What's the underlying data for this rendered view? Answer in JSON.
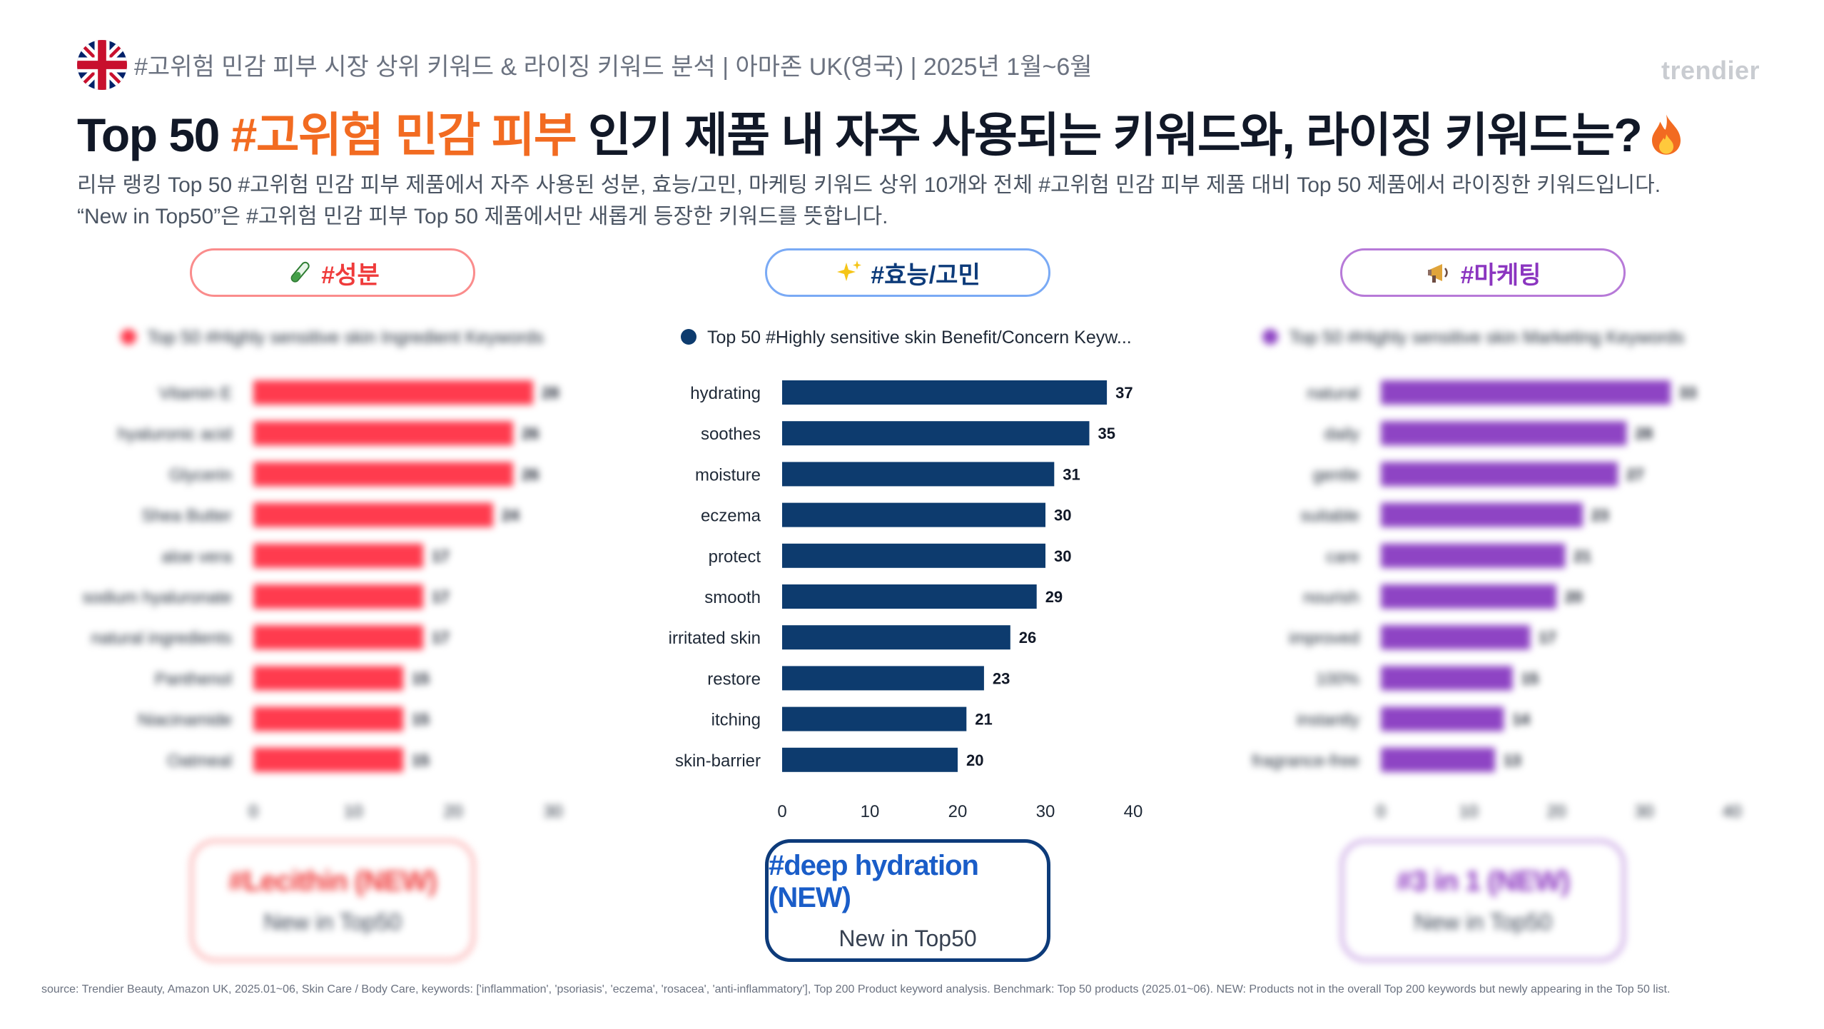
{
  "header": {
    "line": "#고위험 민감 피부 시장 상위 키워드 & 라이징 키워드 분석 | 아마존 UK(영국) | 2025년 1월~6월",
    "brand": "trendier"
  },
  "title": {
    "prefix": "Top 50 ",
    "highlight": "#고위험 민감 피부",
    "suffix": " 인기 제품 내 자주 사용되는 키워드와, 라이징 키워드는?"
  },
  "description": {
    "line1": "리뷰 랭킹 Top 50 #고위험 민감 피부 제품에서 자주 사용된 성분, 효능/고민, 마케팅 키워드 상위 10개와 전체 #고위험 민감 피부 제품 대비 Top 50 제품에서 라이징한 키워드입니다.",
    "line2": "“New in Top50”은 #고위험 민감 피부 Top 50 제품에서만 새롭게 등장한 키워드를 뜻합니다."
  },
  "pills": {
    "ingredient": "#성분",
    "benefit": "#효능/고민",
    "marketing": "#마케팅"
  },
  "colors": {
    "ingredient": "#ff3b4e",
    "benefit": "#0d3b6e",
    "marketing": "#8e44c4",
    "highlight": "#f26b21"
  },
  "chart_data": [
    {
      "type": "bar",
      "orientation": "horizontal",
      "legend": "Top 50 #Highly sensitive skin Ingredient Keywords",
      "categories": [
        "Vitamin E",
        "hyaluronic acid",
        "Glycerin",
        "Shea Butter",
        "aloe vera",
        "sodium hyaluronate",
        "natural ingredients",
        "Panthenol",
        "Niacinamide",
        "Oatmeal"
      ],
      "values": [
        28,
        26,
        26,
        24,
        17,
        17,
        17,
        15,
        15,
        15
      ],
      "xlim": [
        0,
        30
      ],
      "xticks": [
        "0",
        "10",
        "20",
        "30"
      ],
      "blurred": true
    },
    {
      "type": "bar",
      "orientation": "horizontal",
      "legend": "Top 50 #Highly sensitive skin Benefit/Concern Keyw...",
      "categories": [
        "hydrating",
        "soothes",
        "moisture",
        "eczema",
        "protect",
        "smooth",
        "irritated skin",
        "restore",
        "itching",
        "skin-barrier"
      ],
      "values": [
        37,
        35,
        31,
        30,
        30,
        29,
        26,
        23,
        21,
        20
      ],
      "xlim": [
        0,
        40
      ],
      "xticks": [
        "0",
        "10",
        "20",
        "30",
        "40"
      ],
      "blurred": false
    },
    {
      "type": "bar",
      "orientation": "horizontal",
      "legend": "Top 50 #Highly sensitive skin Marketing Keywords",
      "categories": [
        "natural",
        "daily",
        "gentle",
        "suitable",
        "care",
        "nourish",
        "improved",
        "100%",
        "instantly",
        "fragrance-free"
      ],
      "values": [
        33,
        28,
        27,
        23,
        21,
        20,
        17,
        15,
        14,
        13
      ],
      "xlim": [
        0,
        40
      ],
      "xticks": [
        "0",
        "10",
        "20",
        "30",
        "40"
      ],
      "blurred": true
    }
  ],
  "new_keywords": {
    "ingredient": {
      "keyword": "#Lecithin (NEW)",
      "sub": "New in Top50"
    },
    "benefit": {
      "keyword": "#deep hydration (NEW)",
      "sub": "New in Top50"
    },
    "marketing": {
      "keyword": "#3 in 1 (NEW)",
      "sub": "New in Top50"
    }
  },
  "source": "source: Trendier Beauty, Amazon UK, 2025.01~06, Skin Care / Body Care, keywords: ['inflammation', 'psoriasis', 'eczema', 'rosacea', 'anti-inflammatory'], Top 200 Product keyword analysis. Benchmark: Top 50 products (2025.01~06). NEW: Products not in the overall Top 200 keywords but newly appearing in the Top 50 list."
}
